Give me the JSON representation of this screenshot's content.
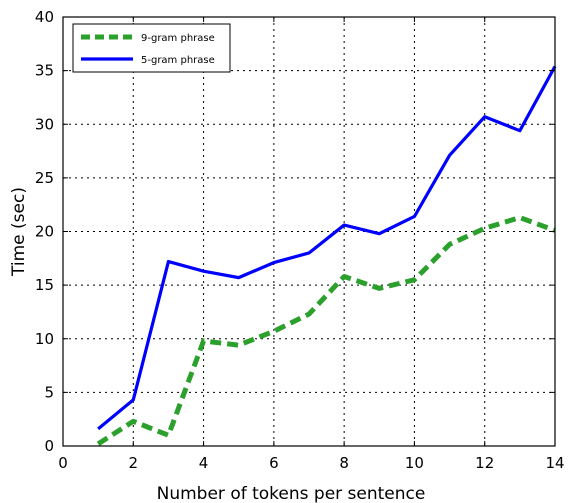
{
  "chart_data": {
    "type": "line",
    "title": "",
    "xlabel": "Number of tokens per sentence",
    "ylabel": "Time (sec)",
    "xlim": [
      0,
      14
    ],
    "ylim": [
      0,
      40
    ],
    "xticks": [
      0,
      2,
      4,
      6,
      8,
      10,
      12,
      14
    ],
    "yticks": [
      0,
      5,
      10,
      15,
      20,
      25,
      30,
      35,
      40
    ],
    "grid": true,
    "legend_position": "top-left",
    "x": [
      1,
      2,
      3,
      4,
      5,
      6,
      7,
      8,
      9,
      10,
      11,
      12,
      13,
      14
    ],
    "series": [
      {
        "name": "9-gram phrase",
        "color": "#2ca02c",
        "style": "dashed",
        "values": [
          0.2,
          2.3,
          1.0,
          9.8,
          9.4,
          10.7,
          12.3,
          15.8,
          14.7,
          15.5,
          18.8,
          20.3,
          21.3,
          20.1
        ]
      },
      {
        "name": "5-gram phrase",
        "color": "#0000ff",
        "style": "solid",
        "values": [
          1.6,
          4.3,
          17.2,
          16.3,
          15.7,
          17.1,
          18.0,
          20.6,
          19.8,
          21.4,
          27.1,
          30.7,
          29.4,
          35.4
        ]
      }
    ]
  }
}
